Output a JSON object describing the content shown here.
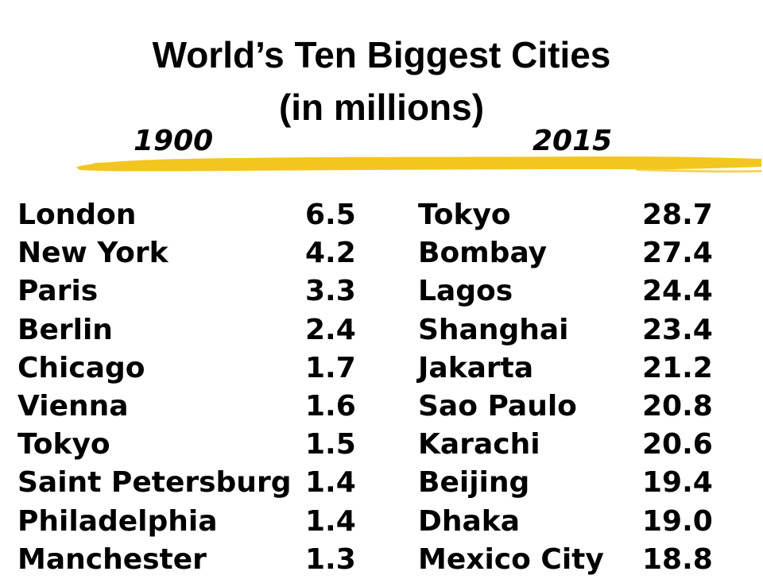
{
  "title": {
    "line1": "World’s Ten Biggest Cities",
    "line2": "(in millions)"
  },
  "years": {
    "left": "1900",
    "right": "2015"
  },
  "colors": {
    "brush": "#f2c61f",
    "text": "#000000"
  },
  "cities_1900": [
    {
      "city": "London",
      "population": "6.5"
    },
    {
      "city": "New York",
      "population": "4.2"
    },
    {
      "city": "Paris",
      "population": "3.3"
    },
    {
      "city": "Berlin",
      "population": "2.4"
    },
    {
      "city": "Chicago",
      "population": "1.7"
    },
    {
      "city": "Vienna",
      "population": "1.6"
    },
    {
      "city": "Tokyo",
      "population": "1.5"
    },
    {
      "city": "Saint Petersburg",
      "population": "1.4"
    },
    {
      "city": "Philadelphia",
      "population": "1.4"
    },
    {
      "city": "Manchester",
      "population": "1.3"
    }
  ],
  "cities_2015": [
    {
      "city": "Tokyo",
      "population": "28.7"
    },
    {
      "city": "Bombay",
      "population": "27.4"
    },
    {
      "city": "Lagos",
      "population": "24.4"
    },
    {
      "city": "Shanghai",
      "population": "23.4"
    },
    {
      "city": "Jakarta",
      "population": "21.2"
    },
    {
      "city": "Sao Paulo",
      "population": "20.8"
    },
    {
      "city": "Karachi",
      "population": "20.6"
    },
    {
      "city": "Beijing",
      "population": "19.4"
    },
    {
      "city": "Dhaka",
      "population": "19.0"
    },
    {
      "city": "Mexico City",
      "population": "18.8"
    }
  ]
}
